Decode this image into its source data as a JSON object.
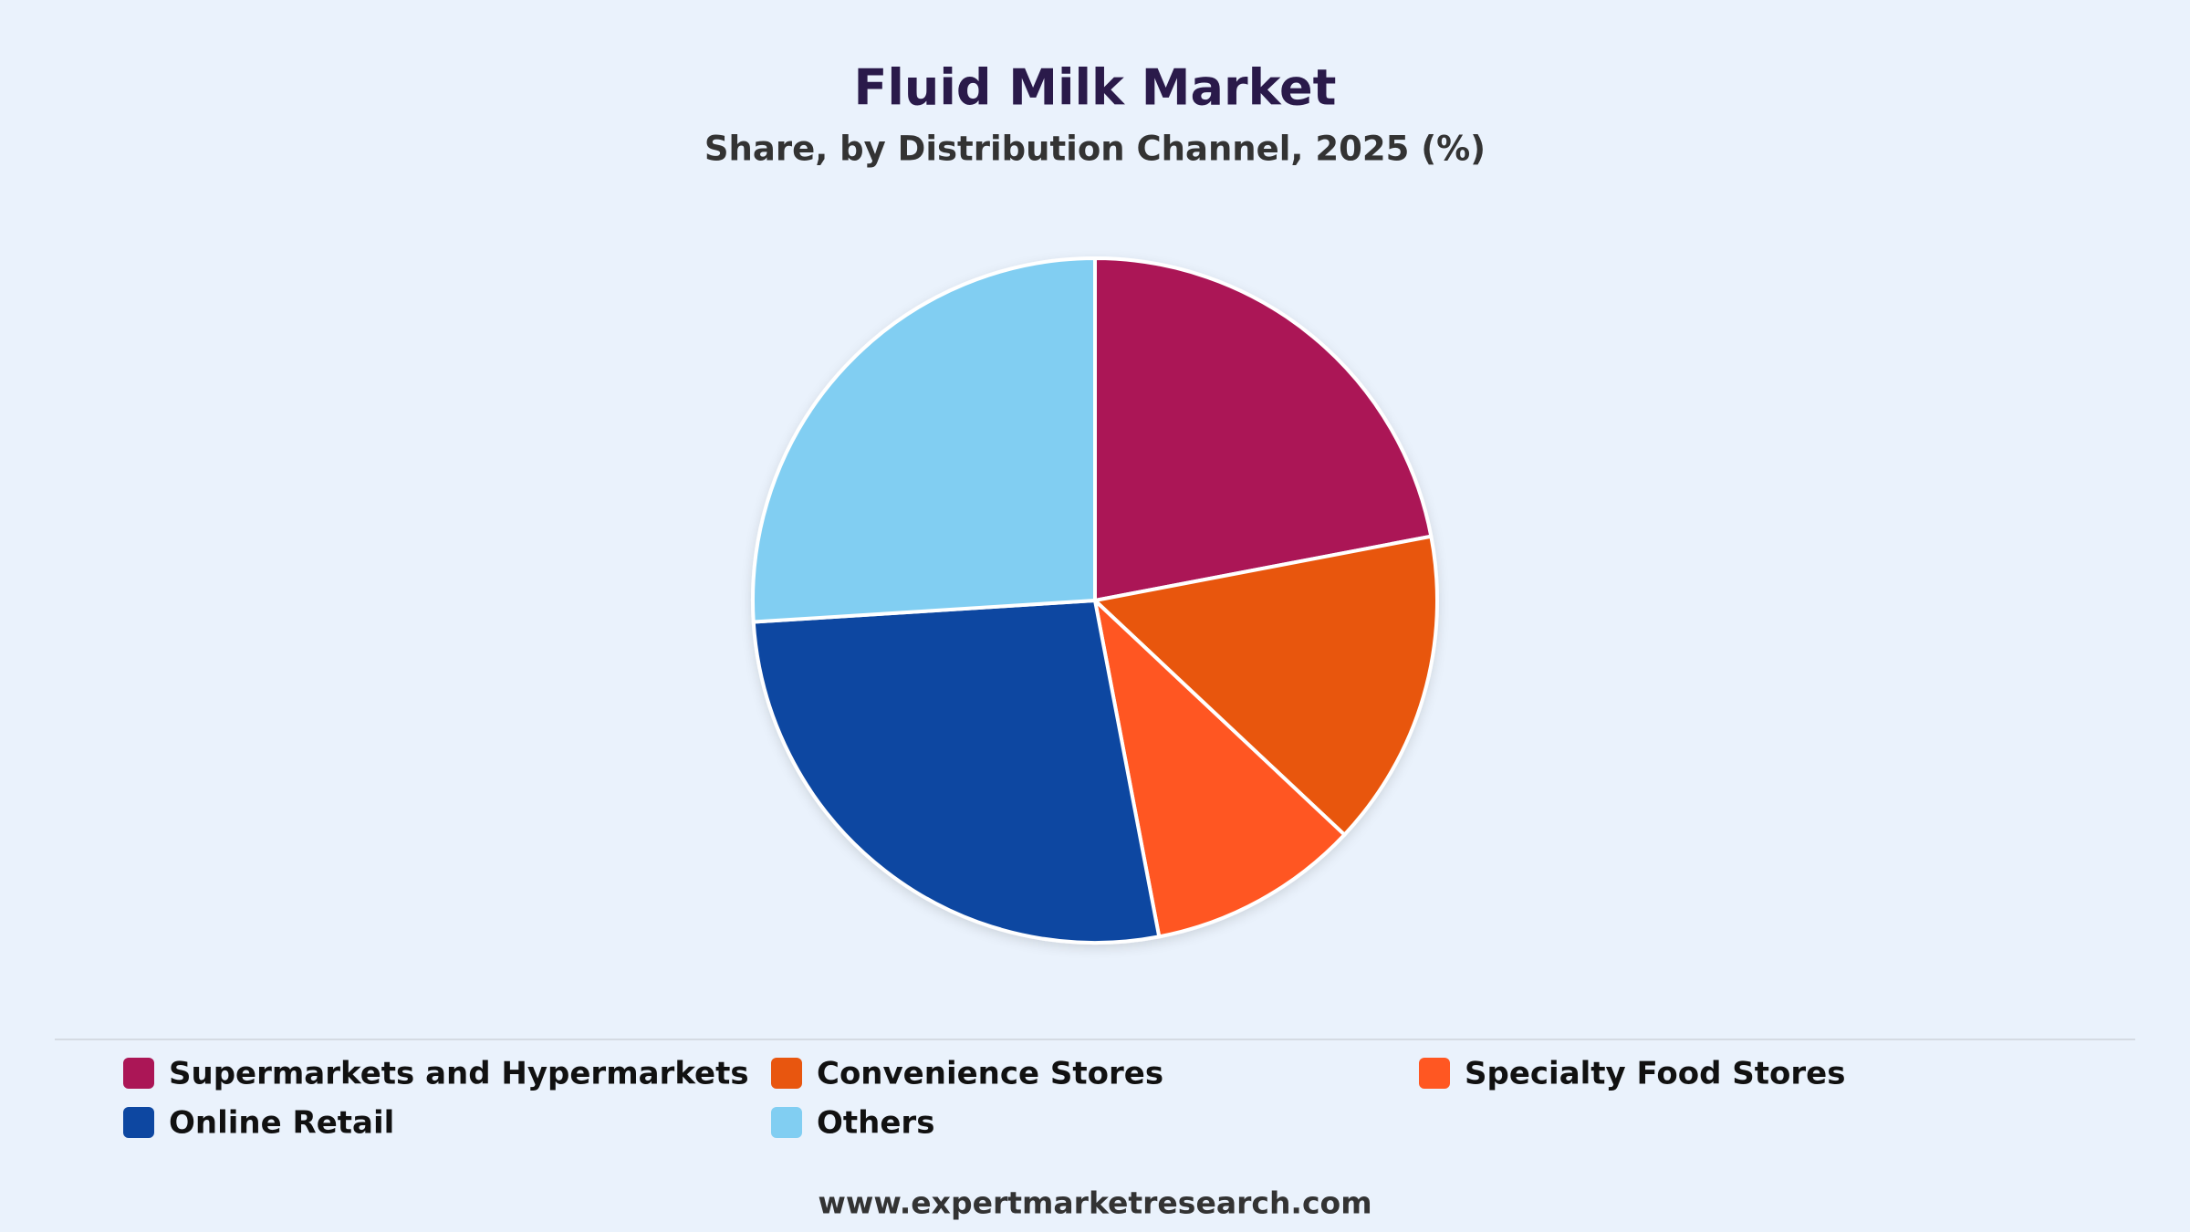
{
  "chart_data": {
    "type": "pie",
    "title": "Fluid Milk Market",
    "subtitle": "Share, by Distribution Channel, 2025 (%)",
    "categories": [
      "Supermarkets and Hypermarkets",
      "Convenience Stores",
      "Specialty Food Stores",
      "Online Retail",
      "Others"
    ],
    "values": [
      22,
      15,
      10,
      27,
      26
    ],
    "colors": [
      "#ab1656",
      "#e8560f",
      "#ff5722",
      "#0d47a1",
      "#81cef2"
    ],
    "source": "www.expertmarketresearch.com"
  }
}
